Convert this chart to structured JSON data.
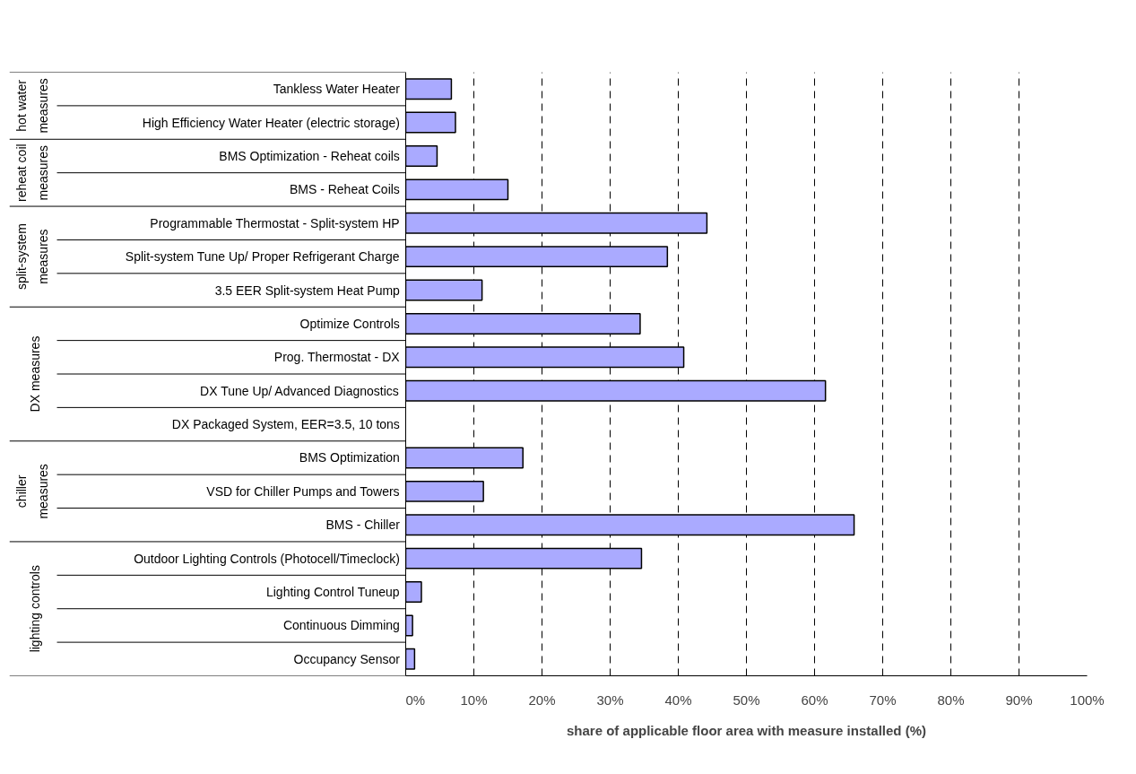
{
  "chart_data": {
    "type": "bar",
    "orientation": "horizontal",
    "xlabel": "share of applicable floor area with measure installed (%)",
    "categories": [
      "Tankless Water Heater",
      "High Efficiency Water Heater (electric storage)",
      "BMS Optimization - Reheat coils",
      "BMS - Reheat Coils",
      "Programmable Thermostat - Split-system HP",
      "Split-system Tune Up/ Proper Refrigerant Charge",
      "3.5 EER Split-system Heat Pump",
      "Optimize Controls",
      "Prog. Thermostat - DX",
      "DX Tune Up/ Advanced Diagnostics",
      "DX Packaged System, EER=3.5, 10 tons",
      "BMS Optimization",
      "VSD for Chiller Pumps and Towers",
      "BMS - Chiller",
      "Outdoor Lighting Controls (Photocell/Timeclock)",
      "Lighting Control Tuneup",
      "Continuous Dimming",
      "Occupancy Sensor"
    ],
    "values": [
      6.7,
      7.3,
      4.6,
      15.0,
      44.2,
      38.4,
      11.2,
      34.4,
      40.8,
      61.6,
      null,
      17.2,
      11.4,
      65.8,
      34.6,
      2.3,
      1.0,
      1.3
    ],
    "color": "#aaaaff",
    "xlim": [
      0,
      100
    ],
    "xticks": [
      {
        "value": 0,
        "label": "0%"
      },
      {
        "value": 10,
        "label": "10%"
      },
      {
        "value": 20,
        "label": "20%"
      },
      {
        "value": 30,
        "label": "30%"
      },
      {
        "value": 40,
        "label": "40%"
      },
      {
        "value": 50,
        "label": "50%"
      },
      {
        "value": 60,
        "label": "60%"
      },
      {
        "value": 70,
        "label": "70%"
      },
      {
        "value": 80,
        "label": "80%"
      },
      {
        "value": 90,
        "label": "90%"
      },
      {
        "value": 100,
        "label": "100%"
      }
    ],
    "grid": "x",
    "annotations": [
      "hot water measures",
      "reheat coil measures",
      "split-system measures",
      "DX measures",
      "chiller measures",
      "lighting controls"
    ]
  }
}
